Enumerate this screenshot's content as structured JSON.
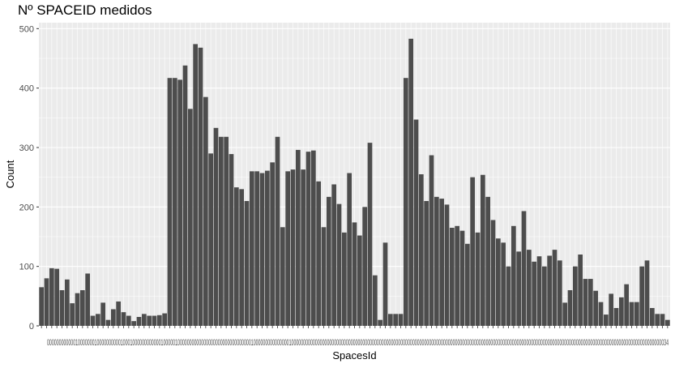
{
  "title": "Nº SPACEID medidos",
  "chart_data": {
    "type": "bar",
    "title": "Nº SPACEID medidos",
    "xlabel": "SpacesId",
    "ylabel": "Count",
    "ylim": [
      0,
      510
    ],
    "yticks": [
      0,
      100,
      200,
      300,
      400,
      500
    ],
    "grid": true,
    "legend": "none",
    "bar_color": "#4d4d4d",
    "panel_color": "#ebebeb",
    "grid_color": "#ffffff",
    "x_tick_labels_text": "0000000000001000000010000000000100010000000000001000001000000000000000000000000000000010000000000000001000000000000000000000000000000000000000000000000000000000000000000000000000000000000000000000000000000000000000000000000000000000000000000000000000000000000034",
    "values": [
      65,
      80,
      97,
      96,
      60,
      78,
      38,
      55,
      60,
      88,
      17,
      20,
      39,
      10,
      28,
      41,
      23,
      17,
      8,
      15,
      20,
      17,
      17,
      18,
      21,
      417,
      417,
      414,
      438,
      365,
      474,
      468,
      385,
      290,
      333,
      318,
      318,
      289,
      233,
      230,
      210,
      260,
      260,
      257,
      261,
      275,
      318,
      166,
      260,
      263,
      296,
      263,
      293,
      295,
      243,
      166,
      217,
      238,
      205,
      157,
      257,
      174,
      152,
      200,
      308,
      85,
      10,
      140,
      20,
      20,
      20,
      417,
      483,
      347,
      255,
      210,
      287,
      217,
      214,
      204,
      165,
      168,
      160,
      138,
      250,
      157,
      254,
      217,
      178,
      147,
      140,
      100,
      168,
      125,
      193,
      128,
      108,
      117,
      100,
      118,
      128,
      110,
      39,
      60,
      100,
      120,
      79,
      79,
      59,
      40,
      19,
      54,
      30,
      48,
      70,
      40,
      40,
      100,
      110,
      30,
      20,
      20,
      10
    ]
  }
}
